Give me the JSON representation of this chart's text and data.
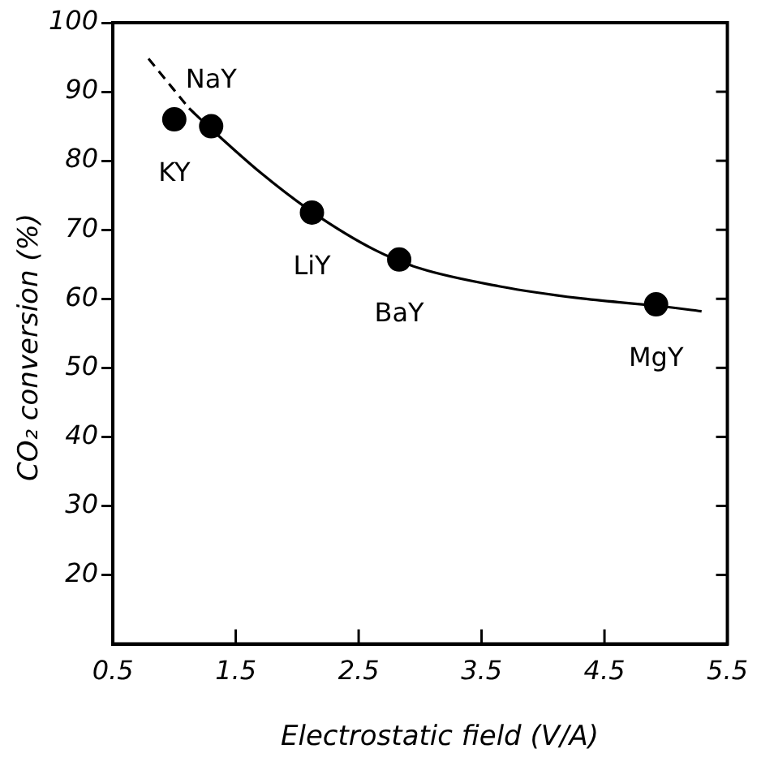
{
  "chart_data": {
    "type": "scatter",
    "xlabel": "Electrostatic field (V/A)",
    "ylabel": "CO₂ conversion (%)",
    "xlim": [
      0.5,
      5.5
    ],
    "xticks": [
      0.5,
      1.5,
      2.5,
      3.5,
      4.5,
      5.5
    ],
    "ylim": [
      10,
      100
    ],
    "yticks": [
      20,
      30,
      40,
      50,
      60,
      70,
      80,
      90,
      100
    ],
    "grid": false,
    "legend": false,
    "series": [
      {
        "type": "line",
        "x": [
          0.79,
          1.12
        ],
        "values": [
          94.8,
          87.6
        ],
        "color": "#000000",
        "line_style": "dashed",
        "marker": "none"
      },
      {
        "type": "line",
        "x": [
          1.12,
          1.3,
          1.7,
          2.12,
          2.63,
          3.0,
          3.65,
          4.29,
          4.92,
          5.29
        ],
        "values": [
          87.6,
          84.6,
          78.3,
          72.6,
          67.1,
          64.4,
          61.8,
          60.1,
          59.0,
          58.2
        ],
        "color": "#000000",
        "line_style": "solid",
        "marker": "none"
      },
      {
        "type": "scatter",
        "x": [
          1.0,
          1.3,
          2.12,
          2.83,
          4.92
        ],
        "values": [
          86,
          85,
          72.5,
          65.7,
          59.2
        ],
        "color": "#000000",
        "marker": "circle"
      }
    ],
    "annotations": [
      {
        "text": "KY",
        "x": 1.0,
        "y": 86
      },
      {
        "text": "NaY",
        "x": 1.3,
        "y": 85
      },
      {
        "text": "LiY",
        "x": 2.12,
        "y": 72.5
      },
      {
        "text": "BaY",
        "x": 2.83,
        "y": 65.7
      },
      {
        "text": "MgY",
        "x": 4.92,
        "y": 59.2
      }
    ]
  }
}
